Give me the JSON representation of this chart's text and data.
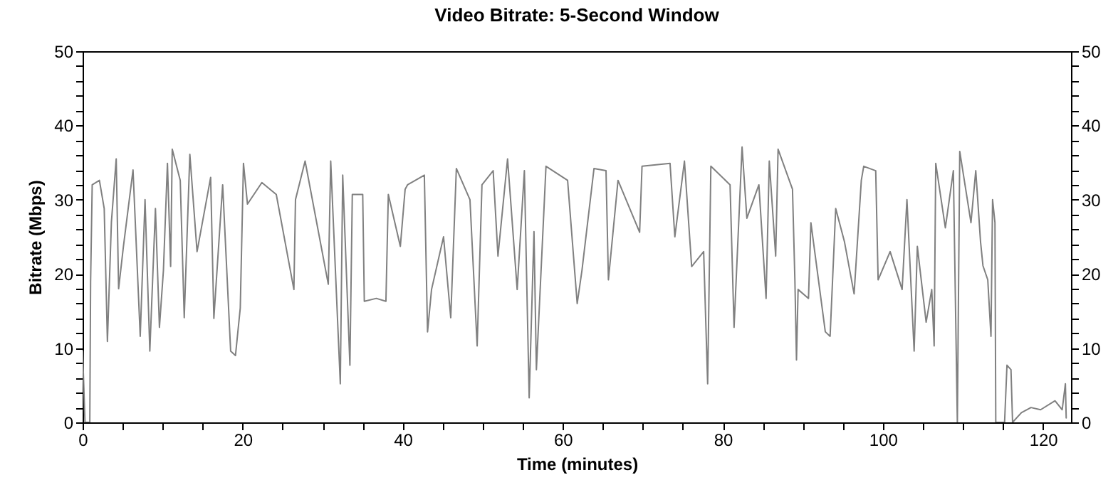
{
  "chart_data": {
    "type": "line",
    "title": "Video Bitrate: 5-Second Window",
    "xlabel": "Time (minutes)",
    "ylabel": "Bitrate (Mbps)",
    "xlim": [
      0,
      123.5
    ],
    "xticks": [
      0,
      {
        "value": 5,
        "label": null
      },
      {
        "value": 10,
        "label": null
      },
      {
        "value": 15,
        "label": null
      },
      20,
      {
        "value": 25,
        "label": null
      },
      {
        "value": 30,
        "label": null
      },
      {
        "value": 35,
        "label": null
      },
      40,
      {
        "value": 45,
        "label": null
      },
      {
        "value": 50,
        "label": null
      },
      {
        "value": 55,
        "label": null
      },
      60,
      {
        "value": 65,
        "label": null
      },
      {
        "value": 70,
        "label": null
      },
      {
        "value": 75,
        "label": null
      },
      80,
      {
        "value": 85,
        "label": null
      },
      {
        "value": 90,
        "label": null
      },
      {
        "value": 95,
        "label": null
      },
      100,
      {
        "value": 105,
        "label": null
      },
      {
        "value": 110,
        "label": null
      },
      {
        "value": 115,
        "label": null
      },
      120
    ],
    "ylim": [
      0,
      50
    ],
    "yticks": [
      0,
      {
        "value": 2,
        "label": null
      },
      {
        "value": 4,
        "label": null
      },
      {
        "value": 6,
        "label": null
      },
      {
        "value": 8,
        "label": null
      },
      10,
      {
        "value": 12,
        "label": null
      },
      {
        "value": 14,
        "label": null
      },
      {
        "value": 16,
        "label": null
      },
      {
        "value": 18,
        "label": null
      },
      20,
      {
        "value": 22,
        "label": null
      },
      {
        "value": 24,
        "label": null
      },
      {
        "value": 26,
        "label": null
      },
      {
        "value": 28,
        "label": null
      },
      30,
      {
        "value": 32,
        "label": null
      },
      {
        "value": 34,
        "label": null
      },
      {
        "value": 36,
        "label": null
      },
      {
        "value": 38,
        "label": null
      },
      40,
      {
        "value": 42,
        "label": null
      },
      {
        "value": 44,
        "label": null
      },
      {
        "value": 46,
        "label": null
      },
      {
        "value": 48,
        "label": null
      },
      50
    ],
    "y2lim": [
      0,
      50
    ],
    "y2ticks": [
      0,
      {
        "value": 2,
        "label": null
      },
      {
        "value": 4,
        "label": null
      },
      {
        "value": 6,
        "label": null
      },
      {
        "value": 8,
        "label": null
      },
      10,
      {
        "value": 12,
        "label": null
      },
      {
        "value": 14,
        "label": null
      },
      {
        "value": 16,
        "label": null
      },
      {
        "value": 18,
        "label": null
      },
      20,
      {
        "value": 22,
        "label": null
      },
      {
        "value": 24,
        "label": null
      },
      {
        "value": 26,
        "label": null
      },
      {
        "value": 28,
        "label": null
      },
      30,
      {
        "value": 32,
        "label": null
      },
      {
        "value": 34,
        "label": null
      },
      {
        "value": 36,
        "label": null
      },
      {
        "value": 38,
        "label": null
      },
      40,
      {
        "value": 42,
        "label": null
      },
      {
        "value": 44,
        "label": null
      },
      {
        "value": 46,
        "label": null
      },
      {
        "value": 48,
        "label": null
      },
      50
    ],
    "x": [
      0,
      0.3,
      0.9,
      1,
      1.2,
      2.1,
      2.7,
      3.1,
      3.6,
      4.2,
      4.5,
      5.1,
      6.3,
      7.2,
      7.8,
      8.4,
      9.1,
      9.6,
      10.1,
      10.6,
      11,
      11.2,
      12.2,
      12.7,
      13.4,
      14.3,
      16,
      16.4,
      17.5,
      18.5,
      19.1,
      19.7,
      20.1,
      20.6,
      22.4,
      24.2,
      26.4,
      26.6,
      27.8,
      30.7,
      31,
      32.2,
      32.5,
      33.4,
      33.7,
      35,
      35.2,
      36.7,
      37.9,
      38.2,
      39.7,
      40.3,
      40.6,
      42.7,
      43.1,
      43.6,
      45.1,
      46,
      46.7,
      48.4,
      49.3,
      49.9,
      51.3,
      51.9,
      53.1,
      54.3,
      55.2,
      55.8,
      56.4,
      56.7,
      57.9,
      60.6,
      61.8,
      62.4,
      63.9,
      65.4,
      65.7,
      66.9,
      69.6,
      69.9,
      73.4,
      74,
      75.2,
      76.1,
      77.6,
      78.1,
      78.5,
      80.9,
      81.4,
      82.4,
      83,
      84.5,
      85.4,
      85.8,
      86.6,
      86.9,
      88.7,
      89,
      89.2,
      89.4,
      90.7,
      91,
      92.8,
      93.4,
      94.1,
      95.2,
      96.4,
      97.3,
      97.6,
      99.1,
      99.4,
      100.9,
      102.4,
      103,
      103.9,
      104.3,
      105.4,
      106.1,
      106.4,
      106.6,
      107.8,
      108.8,
      109.3,
      109.6,
      111,
      111.6,
      112.2,
      112.5,
      113.1,
      113.5,
      113.7,
      114,
      114.1,
      115.2,
      115.5,
      116,
      116.2,
      117.3,
      118.5,
      119.7,
      121.5,
      122.4,
      122.8,
      122.9
    ],
    "series": [
      {
        "color": "#808080",
        "values": [
          9.6,
          0,
          0,
          19,
          32,
          32.6,
          28.8,
          10.9,
          27,
          35.5,
          18,
          23.7,
          34,
          11.6,
          30,
          9.6,
          28.8,
          12.8,
          20.5,
          34.9,
          21,
          36.8,
          32.6,
          14.1,
          36.1,
          23,
          33,
          14,
          32,
          9.6,
          9,
          15.4,
          34.9,
          29.4,
          32.3,
          30.7,
          17.9,
          30,
          35.2,
          18.6,
          35.2,
          5.2,
          33.3,
          7.7,
          30.7,
          30.7,
          16.3,
          16.7,
          16.3,
          30.7,
          23.7,
          31.4,
          32,
          33.3,
          12.2,
          17.9,
          25,
          14.1,
          34.2,
          30,
          10.3,
          32,
          33.9,
          22.4,
          35.5,
          17.9,
          33.9,
          3.3,
          25.7,
          7.1,
          34.5,
          32.6,
          16,
          20.5,
          34.2,
          33.9,
          19.2,
          32.6,
          25.6,
          34.5,
          34.9,
          25,
          35.2,
          21,
          23,
          5.2,
          34.5,
          32,
          12.8,
          37.1,
          27.5,
          32,
          16.7,
          35.2,
          22.4,
          36.8,
          31.4,
          19.2,
          8.4,
          17.9,
          16.7,
          26.9,
          12.2,
          11.6,
          28.8,
          24.3,
          17.3,
          32.6,
          34.5,
          33.9,
          19.2,
          23,
          17.9,
          30,
          9.6,
          23.7,
          13.5,
          17.9,
          10.3,
          34.9,
          26.2,
          33.9,
          0,
          36.5,
          26.9,
          33.9,
          24.3,
          21.1,
          19.2,
          11.6,
          30,
          26.9,
          0,
          0,
          7.7,
          7.1,
          0,
          1.3,
          2,
          1.7,
          2.9,
          1.7,
          5.2,
          0.6
        ]
      }
    ]
  }
}
